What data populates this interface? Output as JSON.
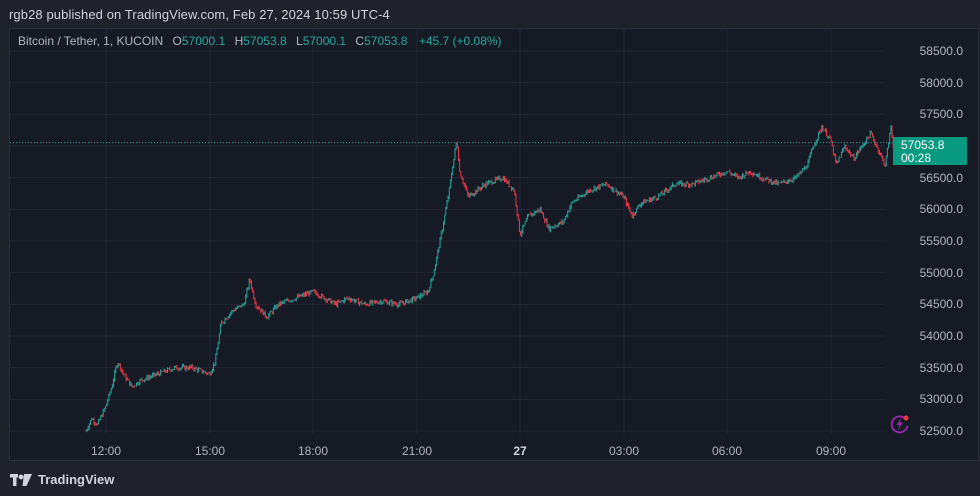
{
  "header": {
    "publish_line": "rgb28 published on TradingView.com, Feb 27, 2024 10:59 UTC-4"
  },
  "legend": {
    "symbol": "Bitcoin / Tether, 1, KUCOIN",
    "open_label": "O",
    "open": "57000.1",
    "high_label": "H",
    "high": "57053.8",
    "low_label": "L",
    "low": "57000.1",
    "close_label": "C",
    "close": "57053.8",
    "change": "+45.7 (+0.08%)"
  },
  "price_tag": {
    "price": "57053.8",
    "countdown": "00:28",
    "color": "#089981"
  },
  "footer": {
    "brand": "TradingView"
  },
  "colors": {
    "up": "#26a69a",
    "down": "#f23645",
    "background": "#161a25",
    "grid": "#232632",
    "axis_text": "#b2b5be",
    "last_price_line": "#26a69a",
    "bolt_icon": "#9c27b0"
  },
  "chart_data": {
    "type": "candlestick",
    "title": "Bitcoin / Tether, 1, KUCOIN",
    "interval": "1 minute",
    "xlabel": "",
    "ylabel": "",
    "ylim": [
      52300,
      58800
    ],
    "y_ticks": [
      "58500.0",
      "58000.0",
      "57500.0",
      "57000.0",
      "56500.0",
      "56000.0",
      "55500.0",
      "55000.0",
      "54500.0",
      "54000.0",
      "53500.0",
      "53000.0",
      "52500.0"
    ],
    "x_ticks": [
      "12:00",
      "15:00",
      "18:00",
      "21:00",
      "27",
      "03:00",
      "06:00",
      "09:00"
    ],
    "last_price": 57053.8,
    "grid": true,
    "legend_position": "top-left",
    "price_path": [
      {
        "time": "11:25",
        "price": 52500
      },
      {
        "time": "11:35",
        "price": 52700
      },
      {
        "time": "11:45",
        "price": 52600
      },
      {
        "time": "12:00",
        "price": 52900
      },
      {
        "time": "12:10",
        "price": 53200
      },
      {
        "time": "12:20",
        "price": 53600
      },
      {
        "time": "12:30",
        "price": 53400
      },
      {
        "time": "12:45",
        "price": 53200
      },
      {
        "time": "13:00",
        "price": 53300
      },
      {
        "time": "13:30",
        "price": 53400
      },
      {
        "time": "14:00",
        "price": 53500
      },
      {
        "time": "14:30",
        "price": 53500
      },
      {
        "time": "15:00",
        "price": 53400
      },
      {
        "time": "15:10",
        "price": 53600
      },
      {
        "time": "15:20",
        "price": 54200
      },
      {
        "time": "15:40",
        "price": 54400
      },
      {
        "time": "16:00",
        "price": 54500
      },
      {
        "time": "16:10",
        "price": 54900
      },
      {
        "time": "16:20",
        "price": 54500
      },
      {
        "time": "16:40",
        "price": 54300
      },
      {
        "time": "17:00",
        "price": 54500
      },
      {
        "time": "17:30",
        "price": 54600
      },
      {
        "time": "18:00",
        "price": 54700
      },
      {
        "time": "18:20",
        "price": 54600
      },
      {
        "time": "18:40",
        "price": 54500
      },
      {
        "time": "19:00",
        "price": 54600
      },
      {
        "time": "19:30",
        "price": 54500
      },
      {
        "time": "20:00",
        "price": 54550
      },
      {
        "time": "20:30",
        "price": 54500
      },
      {
        "time": "21:00",
        "price": 54600
      },
      {
        "time": "21:20",
        "price": 54700
      },
      {
        "time": "21:30",
        "price": 55000
      },
      {
        "time": "21:45",
        "price": 55700
      },
      {
        "time": "21:55",
        "price": 56200
      },
      {
        "time": "22:05",
        "price": 56800
      },
      {
        "time": "22:10",
        "price": 57100
      },
      {
        "time": "22:15",
        "price": 56600
      },
      {
        "time": "22:30",
        "price": 56200
      },
      {
        "time": "22:45",
        "price": 56300
      },
      {
        "time": "23:00",
        "price": 56400
      },
      {
        "time": "23:30",
        "price": 56500
      },
      {
        "time": "23:50",
        "price": 56300
      },
      {
        "time": "00:00",
        "price": 55600
      },
      {
        "time": "00:15",
        "price": 55900
      },
      {
        "time": "00:35",
        "price": 56000
      },
      {
        "time": "00:50",
        "price": 55700
      },
      {
        "time": "01:15",
        "price": 55800
      },
      {
        "time": "01:30",
        "price": 56100
      },
      {
        "time": "02:00",
        "price": 56300
      },
      {
        "time": "02:30",
        "price": 56400
      },
      {
        "time": "03:00",
        "price": 56200
      },
      {
        "time": "03:15",
        "price": 55900
      },
      {
        "time": "03:30",
        "price": 56100
      },
      {
        "time": "04:00",
        "price": 56200
      },
      {
        "time": "04:30",
        "price": 56400
      },
      {
        "time": "05:00",
        "price": 56400
      },
      {
        "time": "05:30",
        "price": 56500
      },
      {
        "time": "06:00",
        "price": 56600
      },
      {
        "time": "06:20",
        "price": 56500
      },
      {
        "time": "06:40",
        "price": 56600
      },
      {
        "time": "07:00",
        "price": 56500
      },
      {
        "time": "07:30",
        "price": 56400
      },
      {
        "time": "08:00",
        "price": 56500
      },
      {
        "time": "08:20",
        "price": 56700
      },
      {
        "time": "08:30",
        "price": 57000
      },
      {
        "time": "08:45",
        "price": 57300
      },
      {
        "time": "09:00",
        "price": 57100
      },
      {
        "time": "09:10",
        "price": 56700
      },
      {
        "time": "09:25",
        "price": 57000
      },
      {
        "time": "09:40",
        "price": 56800
      },
      {
        "time": "09:55",
        "price": 57000
      },
      {
        "time": "10:10",
        "price": 57200
      },
      {
        "time": "10:25",
        "price": 56900
      },
      {
        "time": "10:35",
        "price": 56700
      },
      {
        "time": "10:45",
        "price": 57300
      },
      {
        "time": "10:52",
        "price": 56800
      },
      {
        "time": "10:59",
        "price": 57053.8
      }
    ]
  }
}
